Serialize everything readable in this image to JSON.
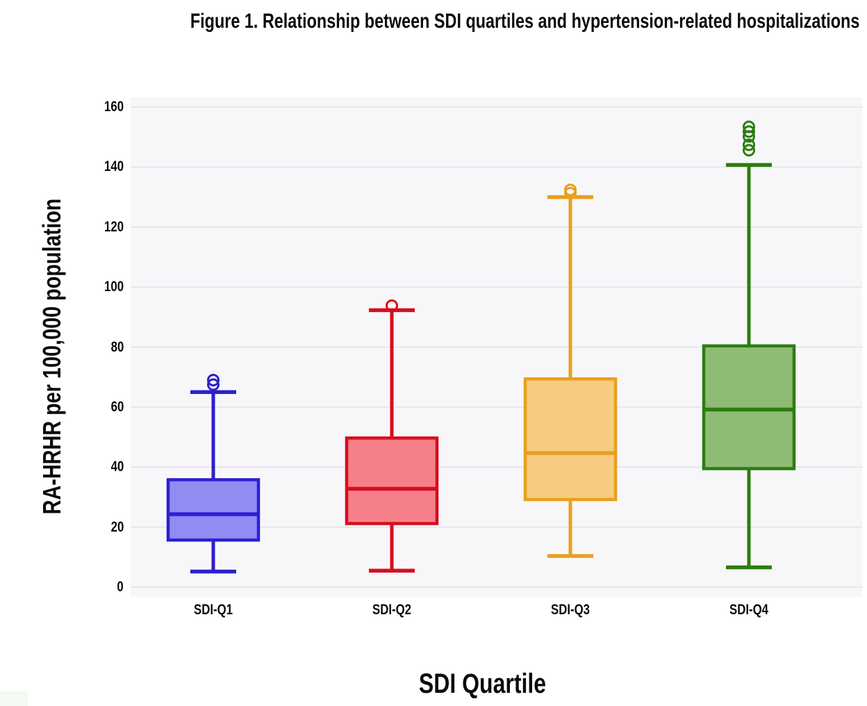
{
  "title": "Figure 1. Relationship between SDI quartiles and hypertension-related hospitalizations",
  "chart_data": {
    "type": "box",
    "title": "Figure 1. Relationship between SDI quartiles and hypertension-related hospitalizations",
    "xlabel": "SDI Quartile",
    "ylabel": "RA-HRHR per 100,000 population",
    "ylim": [
      0,
      160
    ],
    "yticks": [
      0,
      20,
      40,
      60,
      80,
      100,
      120,
      140,
      160
    ],
    "grid": true,
    "legend": "none",
    "plot_bg": "#f7f7f9",
    "grid_color": "#e3e3e8",
    "tick_color": "#0b0b0b",
    "categories": [
      "SDI-Q1",
      "SDI-Q2",
      "SDI-Q3",
      "SDI-Q4"
    ],
    "series": [
      {
        "name": "SDI-Q1",
        "whisker_low": 5.2,
        "q1": 15.7,
        "median": 24.3,
        "q3": 35.8,
        "whisker_high": 65.0,
        "outliers": [
          67.5,
          69.0
        ],
        "fill": "#8f8cf2",
        "stroke": "#2d20cf"
      },
      {
        "name": "SDI-Q2",
        "whisker_low": 5.5,
        "q1": 21.2,
        "median": 32.8,
        "q3": 49.7,
        "whisker_high": 92.3,
        "outliers": [
          93.8
        ],
        "fill": "#f5808a",
        "stroke": "#d60e1e"
      },
      {
        "name": "SDI-Q3",
        "whisker_low": 10.4,
        "q1": 29.2,
        "median": 44.7,
        "q3": 69.4,
        "whisker_high": 130.0,
        "outliers": [
          131.3,
          132.4
        ],
        "fill": "#f7cc82",
        "stroke": "#ea9f1f"
      },
      {
        "name": "SDI-Q4",
        "whisker_low": 6.6,
        "q1": 39.5,
        "median": 59.2,
        "q3": 80.4,
        "whisker_high": 140.7,
        "outliers": [
          145.6,
          147.4,
          150.2,
          151.8,
          153.4
        ],
        "fill": "#8fbc75",
        "stroke": "#2c7d10"
      }
    ]
  }
}
